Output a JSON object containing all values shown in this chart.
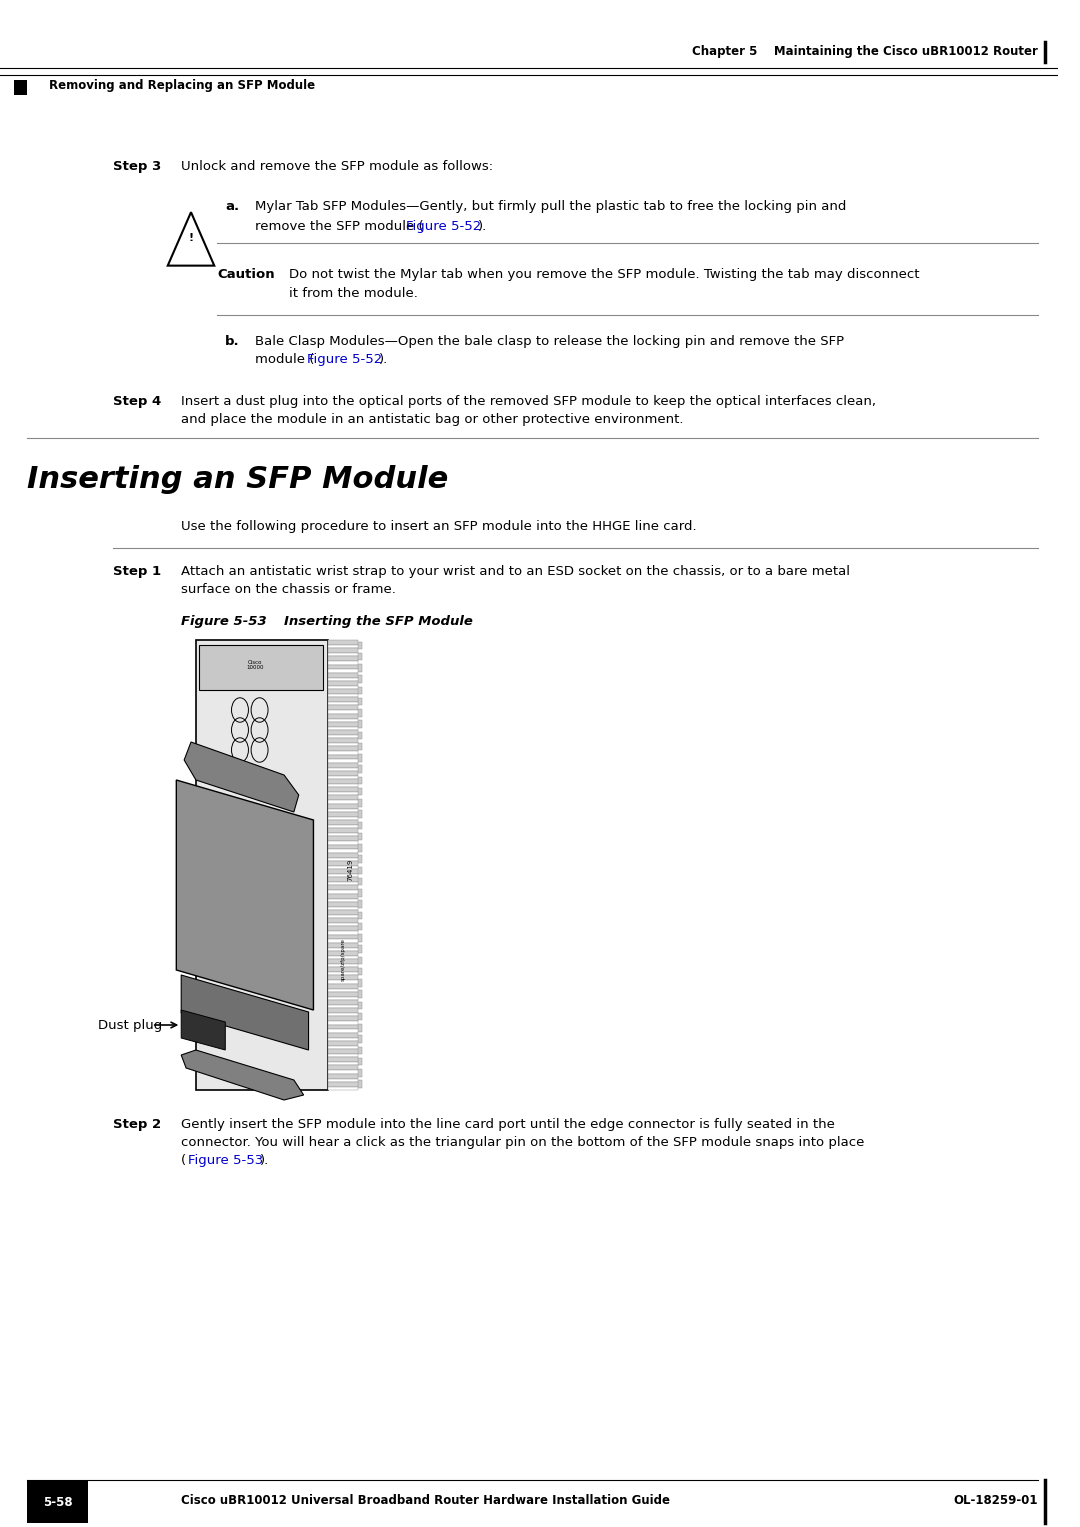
{
  "page_width": 10.8,
  "page_height": 15.27,
  "bg_color": "#ffffff",
  "header_chapter": "Chapter 5    Maintaining the Cisco uBR10012 Router",
  "header_section": "Removing and Replacing an SFP Module",
  "step3_label": "Step 3",
  "step3_text": "Unlock and remove the SFP module as follows:",
  "step3a_label": "a.",
  "step3a_text": "Mylar Tab SFP Modules—Gently, but firmly pull the plastic tab to free the locking pin and\nremove the SFP module (Figure 5-52).",
  "caution_label": "Caution",
  "caution_text": "Do not twist the Mylar tab when you remove the SFP module. Twisting the tab may disconnect\nit from the module.",
  "step3b_label": "b.",
  "step3b_text": "Bale Clasp Modules—Open the bale clasp to release the locking pin and remove the SFP\nmodule (Figure 5-52).",
  "step4_label": "Step 4",
  "step4_text": "Insert a dust plug into the optical ports of the removed SFP module to keep the optical interfaces clean,\nand place the module in an antistatic bag or other protective environment.",
  "section_title": "Inserting an SFP Module",
  "section_intro": "Use the following procedure to insert an SFP module into the HHGE line card.",
  "step1_label": "Step 1",
  "step1_text": "Attach an antistatic wrist strap to your wrist and to an ESD socket on the chassis, or to a bare metal\nsurface on the chassis or frame.",
  "figure_label": "Figure 5-53",
  "figure_title": "Inserting the SFP Module",
  "dust_plug_label": "Dust plug",
  "step2_label": "Step 2",
  "step2_text": "Gently insert the SFP module into the line card port until the edge connector is fully seated in the\nconnector. You will hear a click as the triangular pin on the bottom of the SFP module snaps into place\n(Figure 5-53).",
  "footer_left": "Cisco uBR10012 Universal Broadband Router Hardware Installation Guide",
  "footer_page": "5-58",
  "footer_right": "OL-18259-01",
  "link_color": "#0000CC",
  "text_color": "#000000",
  "section_title_size": 22,
  "body_font_size": 9.5,
  "step_label_size": 9.5,
  "caution_size": 9.5,
  "header_size": 8.5,
  "footer_size": 8.5,
  "figure_label_size": 9.5
}
